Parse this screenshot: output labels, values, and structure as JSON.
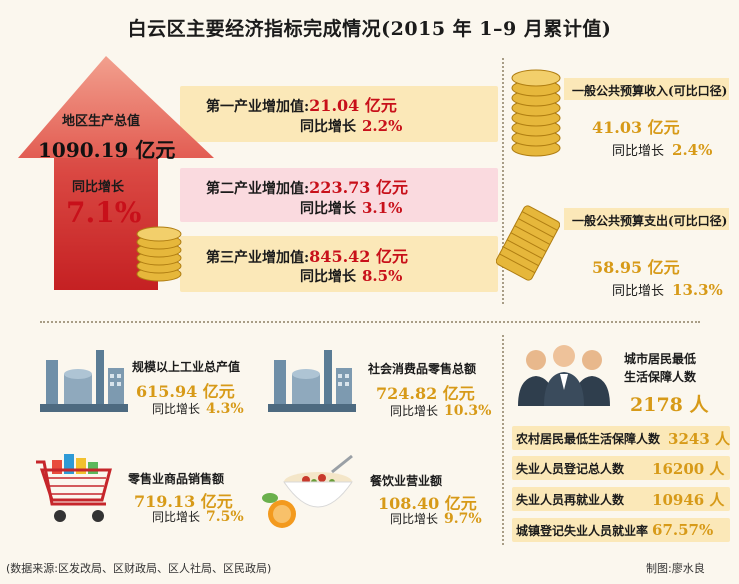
{
  "title": "白云区主要经济指标完成情况(2015 年 1–9 月累计值)",
  "gdp": {
    "label": "地区生产总值",
    "value": "1090.19 亿元",
    "growth_label": "同比增长",
    "growth_value": "7.1%"
  },
  "industries": [
    {
      "label": "第一产业增加值:",
      "value": "21.04 亿元",
      "growth_label": "同比增长",
      "growth_value": "2.2%"
    },
    {
      "label": "第二产业增加值:",
      "value": "223.73 亿元",
      "growth_label": "同比增长",
      "growth_value": "3.1%"
    },
    {
      "label": "第三产业增加值:",
      "value": "845.42 亿元",
      "growth_label": "同比增长",
      "growth_value": "8.5%"
    }
  ],
  "budget": {
    "income": {
      "title": "一般公共预算收入(可比口径)",
      "value": "41.03 亿元",
      "growth_label": "同比增长",
      "growth_value": "2.4%"
    },
    "expense": {
      "title": "一般公共预算支出(可比口径)",
      "value": "58.95 亿元",
      "growth_label": "同比增长",
      "growth_value": "13.3%"
    }
  },
  "indicators": {
    "industrial": {
      "title": "规模以上工业总产值",
      "value": "615.94 亿元",
      "growth_label": "同比增长",
      "growth_value": "4.3%"
    },
    "consumer": {
      "title": "社会消费品零售总额",
      "value": "724.82 亿元",
      "growth_label": "同比增长",
      "growth_value": "10.3%"
    },
    "retail": {
      "title": "零售业商品销售额",
      "value": "719.13 亿元",
      "growth_label": "同比增长",
      "growth_value": "7.5%"
    },
    "catering": {
      "title": "餐饮业营业额",
      "value": "108.40 亿元",
      "growth_label": "同比增长",
      "growth_value": "9.7%"
    }
  },
  "social": {
    "city_title_line1": "城市居民最低",
    "city_title_line2": "生活保障人数",
    "city_value": "2178 人",
    "rows": [
      {
        "label": "农村居民最低生活保障人数",
        "value": "3243 人"
      },
      {
        "label": "失业人员登记总人数",
        "value": "16200 人"
      },
      {
        "label": "失业人员再就业人数",
        "value": "10946 人"
      },
      {
        "label": "城镇登记失业人员就业率",
        "value": "67.57%"
      }
    ]
  },
  "footnote": "(数据来源:区发改局、区财政局、区人社局、区民政局)",
  "credit": "制图:廖水良",
  "colors": {
    "accent_red": "#c8101a",
    "accent_gold": "#d79a18",
    "band_yellow": "#fbe8b8",
    "band_pink": "#fadadf"
  }
}
